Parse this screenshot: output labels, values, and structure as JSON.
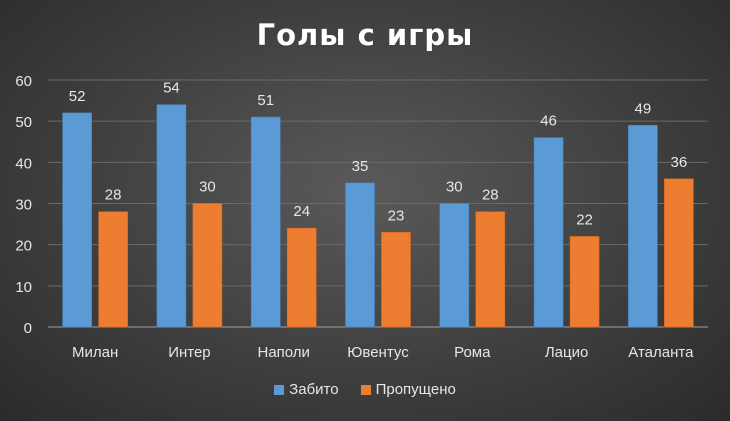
{
  "chart_data": {
    "type": "bar",
    "title": "Голы с игры",
    "categories": [
      "Милан",
      "Интер",
      "Наполи",
      "Ювентус",
      "Рома",
      "Лацио",
      "Аталанта"
    ],
    "series": [
      {
        "name": "Забито",
        "values": [
          52,
          54,
          51,
          35,
          30,
          46,
          49
        ],
        "color": "#5b9bd5"
      },
      {
        "name": "Пропущено",
        "values": [
          28,
          30,
          24,
          23,
          28,
          22,
          36
        ],
        "color": "#ed7d31"
      }
    ],
    "ylim": [
      0,
      60
    ],
    "yticks": [
      0,
      10,
      20,
      30,
      40,
      50,
      60
    ],
    "grid": true,
    "data_labels": true,
    "legend_position": "bottom"
  }
}
